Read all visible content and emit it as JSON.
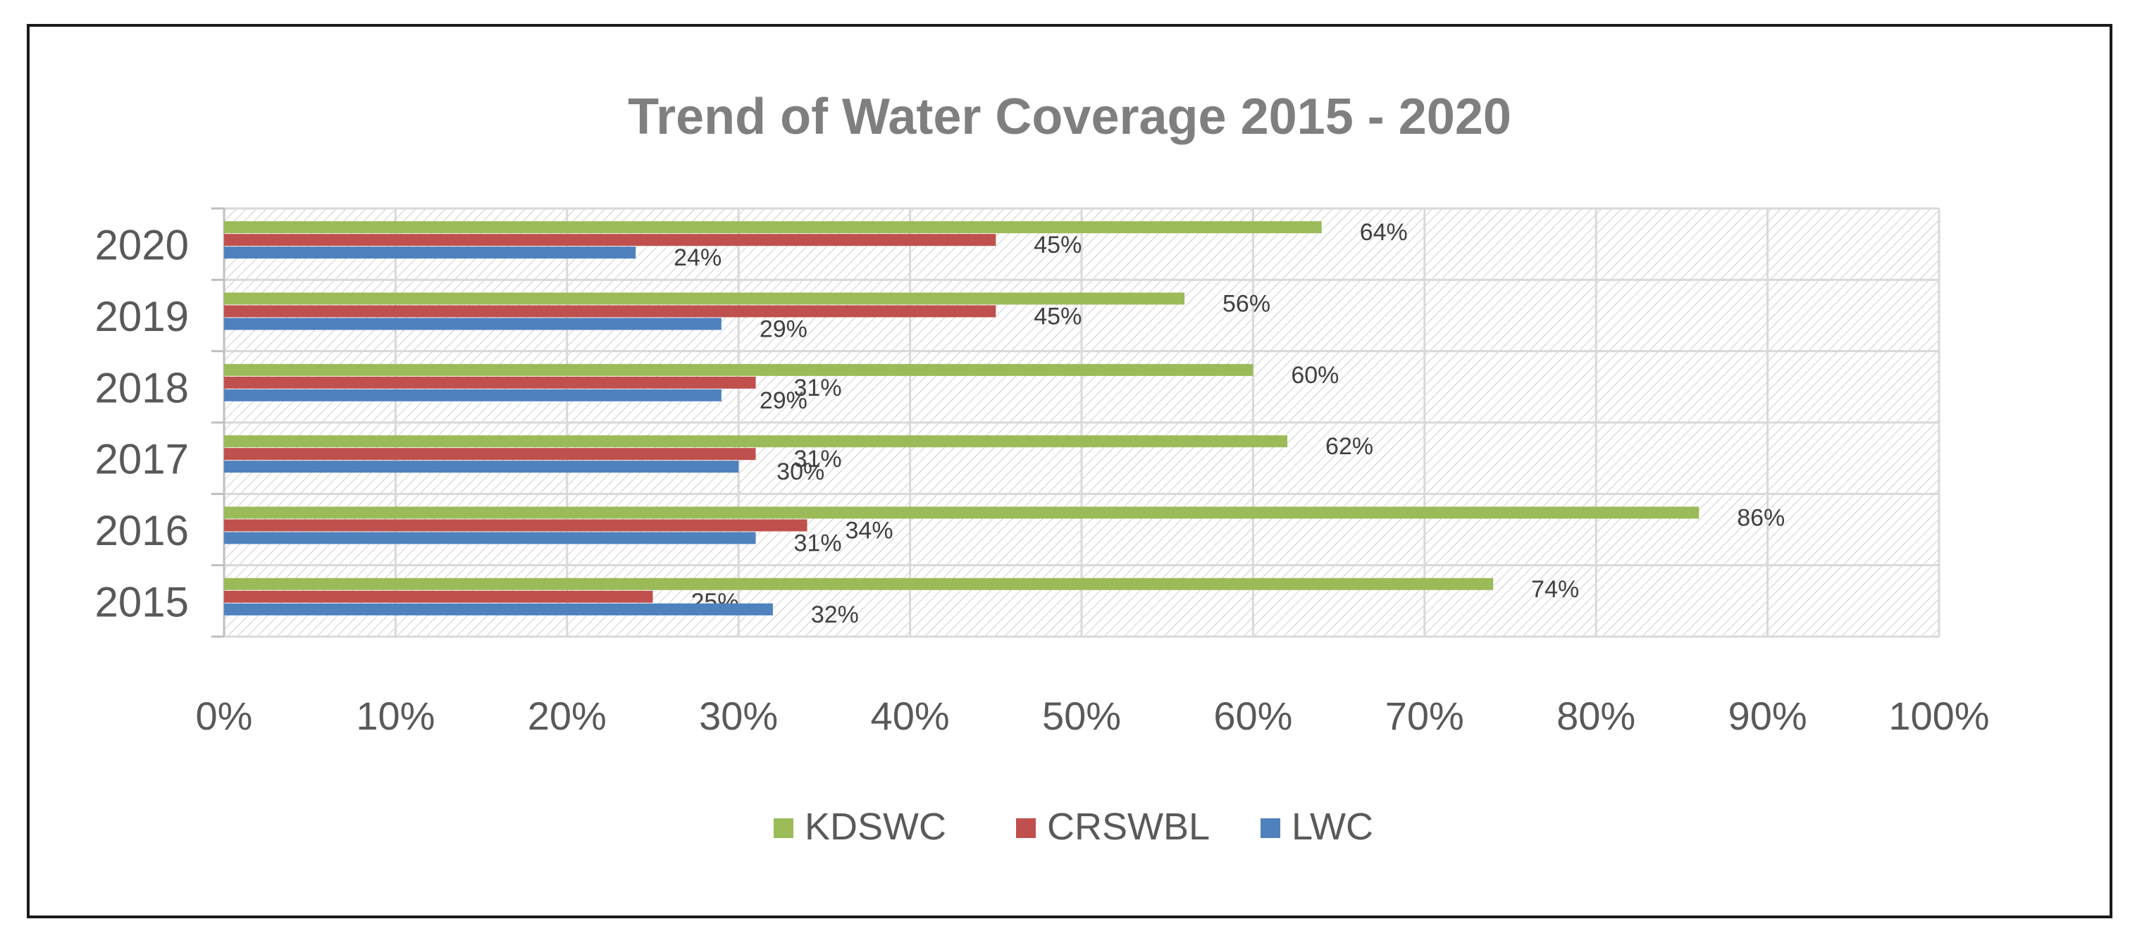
{
  "chart_data": {
    "type": "bar",
    "orientation": "horizontal",
    "title": "Trend of Water Coverage 2015 - 2020",
    "categories": [
      "2015",
      "2016",
      "2017",
      "2018",
      "2019",
      "2020"
    ],
    "series": [
      {
        "name": "KDSWC",
        "color": "#9bbb59",
        "values": [
          74,
          86,
          62,
          60,
          56,
          64
        ],
        "labels": [
          "74%",
          "86%",
          "62%",
          "60%",
          "56%",
          "64%"
        ]
      },
      {
        "name": "CRSWBL",
        "color": "#c0504d",
        "values": [
          25,
          34,
          31,
          31,
          45,
          45
        ],
        "labels": [
          "25%",
          "34%",
          "31%",
          "31%",
          "45%",
          "45%"
        ]
      },
      {
        "name": "LWC",
        "color": "#4f81bd",
        "values": [
          32,
          31,
          30,
          29,
          29,
          24
        ],
        "labels": [
          "32%",
          "31%",
          "30%",
          "29%",
          "29%",
          "24%"
        ]
      }
    ],
    "xlim": [
      0,
      100
    ],
    "xticks": [
      "0%",
      "10%",
      "20%",
      "30%",
      "40%",
      "50%",
      "60%",
      "70%",
      "80%",
      "90%",
      "100%"
    ],
    "grid": true,
    "plot_background": "hatched",
    "legend_position": "bottom"
  }
}
